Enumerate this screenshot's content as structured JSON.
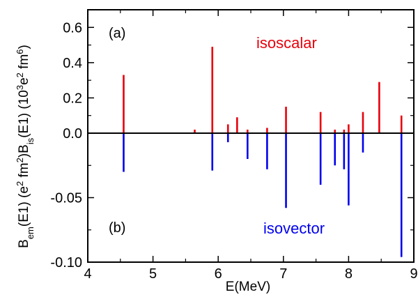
{
  "chart_data": {
    "type": "bar",
    "xlabel": "E(MeV)",
    "ylabel_parts": [
      "B",
      "em",
      "(E1) (e",
      "2",
      " fm",
      "2",
      ")B",
      "is",
      "(E1) (10",
      "3",
      "e",
      "2",
      " fm",
      "6",
      ")"
    ],
    "xlim": [
      4,
      9
    ],
    "xticks": [
      "4",
      "5",
      "6",
      "7",
      "8",
      "9"
    ],
    "panels": [
      {
        "panel_label": "(a)",
        "series_label": "isoscalar",
        "color": "#e8000b",
        "ylim": [
          0,
          0.7
        ],
        "yticks": [
          "0.0",
          "0.2",
          "0.4",
          "0.6"
        ],
        "bars": [
          {
            "x": 4.55,
            "y": 0.33
          },
          {
            "x": 5.64,
            "y": 0.02
          },
          {
            "x": 5.91,
            "y": 0.49
          },
          {
            "x": 6.15,
            "y": 0.05
          },
          {
            "x": 6.29,
            "y": 0.09
          },
          {
            "x": 6.45,
            "y": 0.02
          },
          {
            "x": 6.75,
            "y": 0.03
          },
          {
            "x": 7.04,
            "y": 0.15
          },
          {
            "x": 7.57,
            "y": 0.12
          },
          {
            "x": 7.79,
            "y": 0.02
          },
          {
            "x": 7.93,
            "y": 0.02
          },
          {
            "x": 8.0,
            "y": 0.05
          },
          {
            "x": 8.22,
            "y": 0.12
          },
          {
            "x": 8.47,
            "y": 0.29
          },
          {
            "x": 8.81,
            "y": 0.1
          }
        ]
      },
      {
        "panel_label": "(b)",
        "series_label": "isovector",
        "color": "#0000ee",
        "ylim": [
          -0.1,
          0
        ],
        "yticks": [
          "-0.10",
          "-0.05",
          "0.00"
        ],
        "bars": [
          {
            "x": 4.55,
            "y": -0.03
          },
          {
            "x": 5.91,
            "y": -0.029
          },
          {
            "x": 6.15,
            "y": -0.007
          },
          {
            "x": 6.45,
            "y": -0.02
          },
          {
            "x": 6.75,
            "y": -0.028
          },
          {
            "x": 7.04,
            "y": -0.058
          },
          {
            "x": 7.57,
            "y": -0.04
          },
          {
            "x": 7.79,
            "y": -0.025
          },
          {
            "x": 7.93,
            "y": -0.028
          },
          {
            "x": 8.0,
            "y": -0.056
          },
          {
            "x": 8.22,
            "y": -0.015
          },
          {
            "x": 8.81,
            "y": -0.096
          }
        ]
      }
    ]
  }
}
